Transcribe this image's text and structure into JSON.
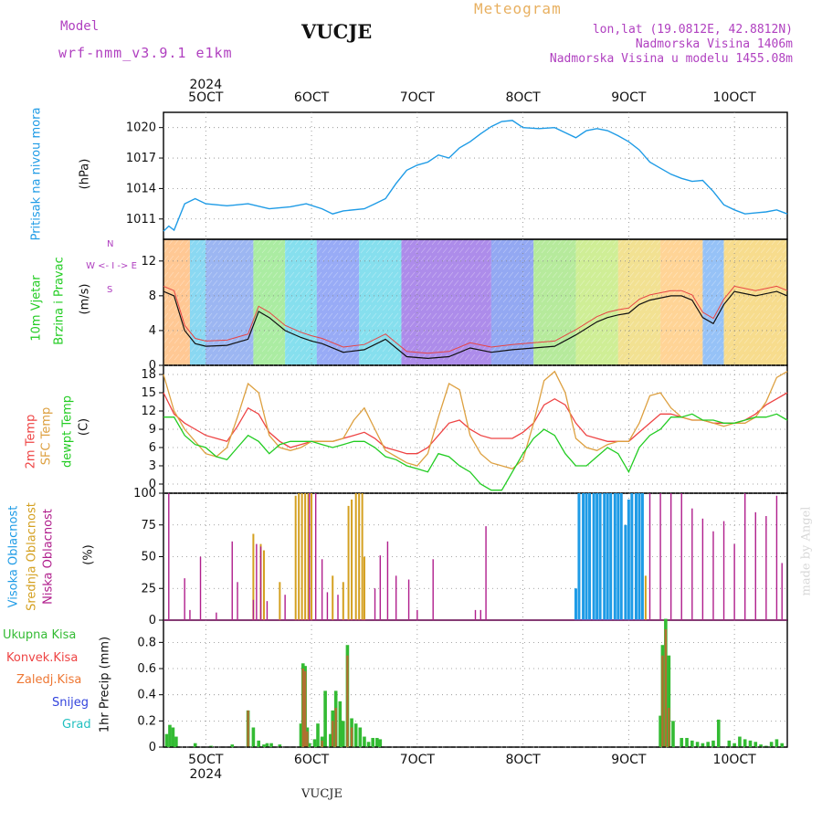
{
  "header": {
    "model_label": "Model",
    "model_name": "wrf-nmm_v3.9.1 e1km",
    "station": "VUCJE",
    "product": "Meteogram",
    "coords": "lon,lat (19.0812E, 42.8812N)",
    "elevation": "Nadmorska Visina 1406m",
    "model_elevation": "Nadmorska Visina u modelu 1455.08m",
    "footer_station": "VUCJE",
    "credit": "made by Angel"
  },
  "colors": {
    "pressure": "#1e9be6",
    "temp2m": "#ee4444",
    "sfc": "#dda040",
    "dewpt": "#22cc22",
    "high_cloud": "#1e9be6",
    "mid_cloud": "#d4a020",
    "low_cloud": "#b01e8c",
    "total_precip": "#33bb33",
    "conv_precip": "#ee4444",
    "frozen_precip": "#ee7733",
    "snow": "#3344dd",
    "hail": "#22c0c0",
    "model": "#b040c0",
    "product": "#e8b060"
  },
  "xaxis": {
    "labels": [
      "5OCT",
      "6OCT",
      "7OCT",
      "8OCT",
      "9OCT",
      "10OCT"
    ],
    "label_days": [
      5,
      6,
      7,
      8,
      9,
      10
    ],
    "year": "2024",
    "range": [
      4.6,
      10.5
    ]
  },
  "chart_data": [
    {
      "type": "line",
      "name": "pressure",
      "ylabel_main": "Pritisak na nivou mora",
      "ylabel_unit": "(hPa)",
      "yticks": [
        "1011",
        "1014",
        "1017",
        "1020"
      ],
      "ylim": [
        1009.0,
        1021.5
      ],
      "x": [
        4.6,
        4.65,
        4.7,
        4.75,
        4.8,
        4.9,
        5.0,
        5.2,
        5.4,
        5.6,
        5.8,
        5.95,
        6.1,
        6.2,
        6.3,
        6.5,
        6.6,
        6.7,
        6.8,
        6.9,
        7.0,
        7.1,
        7.2,
        7.3,
        7.4,
        7.5,
        7.6,
        7.7,
        7.8,
        7.9,
        8.0,
        8.15,
        8.3,
        8.4,
        8.5,
        8.6,
        8.7,
        8.8,
        8.9,
        9.0,
        9.1,
        9.2,
        9.3,
        9.4,
        9.5,
        9.6,
        9.7,
        9.8,
        9.9,
        10.0,
        10.1,
        10.2,
        10.3,
        10.4,
        10.5
      ],
      "y": [
        1009.8,
        1010.3,
        1009.9,
        1011.2,
        1012.5,
        1013.0,
        1012.5,
        1012.3,
        1012.5,
        1012.0,
        1012.2,
        1012.5,
        1012.0,
        1011.5,
        1011.8,
        1012.0,
        1012.5,
        1013.0,
        1014.5,
        1015.8,
        1016.3,
        1016.6,
        1017.3,
        1017.0,
        1018.0,
        1018.6,
        1019.4,
        1020.1,
        1020.6,
        1020.7,
        1020.0,
        1019.9,
        1020.0,
        1019.5,
        1019.0,
        1019.7,
        1019.9,
        1019.7,
        1019.2,
        1018.6,
        1017.8,
        1016.6,
        1016.0,
        1015.4,
        1015.0,
        1014.7,
        1014.8,
        1013.7,
        1012.4,
        1011.9,
        1011.5,
        1011.6,
        1011.7,
        1011.9,
        1011.5
      ]
    },
    {
      "type": "line",
      "name": "wind",
      "ylabel_main": "10m Vjetar",
      "ylabel_sub": "Brzina i Pravac",
      "ylabel_unit": "(m/s)",
      "compass": "W <- I -> E",
      "compass_n": "N",
      "compass_s": "S",
      "yticks": [
        "0",
        "4",
        "8",
        "12"
      ],
      "ylim": [
        0,
        14.5
      ],
      "x": [
        4.6,
        4.7,
        4.8,
        4.9,
        5.0,
        5.2,
        5.4,
        5.5,
        5.6,
        5.75,
        5.9,
        6.0,
        6.1,
        6.3,
        6.5,
        6.7,
        6.9,
        7.1,
        7.3,
        7.5,
        7.7,
        7.9,
        8.1,
        8.3,
        8.5,
        8.7,
        8.8,
        8.9,
        9.0,
        9.1,
        9.2,
        9.4,
        9.5,
        9.6,
        9.7,
        9.8,
        9.9,
        10.0,
        10.2,
        10.4,
        10.5
      ],
      "y": [
        8.5,
        8.0,
        4.0,
        2.5,
        2.2,
        2.3,
        3.0,
        6.2,
        5.5,
        4.0,
        3.2,
        2.8,
        2.5,
        1.5,
        1.8,
        3.0,
        1.0,
        0.8,
        1.0,
        2.0,
        1.5,
        1.8,
        2.0,
        2.2,
        3.5,
        5.0,
        5.5,
        5.8,
        6.0,
        7.0,
        7.5,
        8.0,
        8.0,
        7.5,
        5.5,
        4.8,
        7.0,
        8.5,
        8.0,
        8.5,
        8.0
      ]
    },
    {
      "type": "line",
      "name": "temperature",
      "ylabel_a": "2m Temp",
      "ylabel_b": "SFC Temp",
      "ylabel_c": "dewpt Temp",
      "ylabel_unit": "(C)",
      "yticks": [
        "0",
        "3",
        "6",
        "9",
        "12",
        "15",
        "18"
      ],
      "ylim": [
        -1.5,
        19.5
      ],
      "x": [
        4.6,
        4.7,
        4.8,
        4.9,
        5.0,
        5.1,
        5.2,
        5.3,
        5.4,
        5.5,
        5.6,
        5.7,
        5.8,
        5.9,
        6.0,
        6.1,
        6.2,
        6.3,
        6.4,
        6.5,
        6.6,
        6.7,
        6.8,
        6.9,
        7.0,
        7.1,
        7.2,
        7.3,
        7.4,
        7.5,
        7.6,
        7.7,
        7.8,
        7.9,
        8.0,
        8.1,
        8.2,
        8.3,
        8.4,
        8.5,
        8.6,
        8.7,
        8.8,
        8.9,
        9.0,
        9.1,
        9.2,
        9.3,
        9.4,
        9.5,
        9.6,
        9.7,
        9.8,
        9.9,
        10.0,
        10.1,
        10.2,
        10.3,
        10.4,
        10.5
      ],
      "series": [
        {
          "name": "2m Temp",
          "values": [
            15.0,
            11.5,
            10.0,
            9.0,
            8.0,
            7.5,
            7.0,
            9.5,
            12.5,
            11.5,
            8.5,
            7.0,
            6.0,
            6.5,
            7.0,
            7.0,
            7.0,
            7.5,
            8.0,
            8.5,
            7.5,
            6.0,
            5.5,
            5.0,
            5.0,
            6.0,
            8.0,
            10.0,
            10.5,
            9.0,
            8.0,
            7.5,
            7.5,
            7.5,
            8.5,
            10.0,
            13.0,
            14.0,
            13.0,
            10.0,
            8.0,
            7.5,
            7.0,
            7.0,
            7.0,
            8.5,
            10.0,
            11.5,
            11.5,
            11.0,
            10.5,
            10.5,
            10.0,
            10.0,
            10.0,
            10.5,
            11.5,
            13.0,
            14.0,
            15.0
          ]
        },
        {
          "name": "SFC Temp",
          "values": [
            18.0,
            12.0,
            9.0,
            7.0,
            5.0,
            4.5,
            6.0,
            11.0,
            16.5,
            15.0,
            8.0,
            6.0,
            5.5,
            6.0,
            7.0,
            7.0,
            7.0,
            7.5,
            10.5,
            12.5,
            9.0,
            5.5,
            4.5,
            3.5,
            3.0,
            5.0,
            11.0,
            16.5,
            15.5,
            8.0,
            5.0,
            3.5,
            3.0,
            2.5,
            4.0,
            10.0,
            17.0,
            18.5,
            15.0,
            7.5,
            6.0,
            5.5,
            6.5,
            7.0,
            7.0,
            10.0,
            14.5,
            15.0,
            12.5,
            11.0,
            10.5,
            10.5,
            10.0,
            9.5,
            10.0,
            10.0,
            11.0,
            13.5,
            17.5,
            18.5
          ]
        },
        {
          "name": "dewpt Temp",
          "values": [
            11.0,
            11.0,
            8.0,
            6.5,
            6.0,
            4.5,
            4.0,
            6.0,
            8.0,
            7.0,
            5.0,
            6.5,
            7.0,
            7.0,
            7.0,
            6.5,
            6.0,
            6.5,
            7.0,
            7.0,
            6.0,
            4.5,
            4.0,
            3.0,
            2.5,
            2.0,
            5.0,
            4.5,
            3.0,
            2.0,
            0.0,
            -1.0,
            -1.0,
            2.0,
            5.0,
            7.5,
            9.0,
            8.0,
            5.0,
            3.0,
            3.0,
            4.5,
            6.0,
            5.0,
            2.0,
            6.0,
            8.0,
            9.0,
            11.0,
            11.0,
            11.5,
            10.5,
            10.5,
            10.0,
            10.0,
            10.5,
            11.0,
            11.0,
            11.5,
            10.5
          ]
        }
      ]
    },
    {
      "type": "bar",
      "name": "cloud_cover",
      "ylabel_a": "Visoka Oblacnost",
      "ylabel_b": "Srednja Oblacnost",
      "ylabel_c": "Niska Oblacnost",
      "ylabel_unit": "(%)",
      "yticks": [
        "0",
        "25",
        "50",
        "75",
        "100"
      ],
      "ylim": [
        0,
        100
      ],
      "series": [
        {
          "name": "Visoka Oblacnost",
          "x": [
            8.5,
            8.53,
            8.57,
            8.6,
            8.63,
            8.67,
            8.7,
            8.73,
            8.77,
            8.8,
            8.83,
            8.87,
            8.9,
            8.93,
            8.97,
            9.0,
            9.03,
            9.07,
            9.1,
            9.13
          ],
          "values": [
            25,
            100,
            100,
            100,
            100,
            100,
            100,
            100,
            100,
            100,
            100,
            100,
            100,
            100,
            75,
            95,
            100,
            100,
            100,
            100
          ]
        },
        {
          "name": "Srednja Oblacnost",
          "x": [
            5.45,
            5.52,
            5.55,
            5.7,
            5.85,
            5.88,
            5.91,
            5.94,
            5.97,
            6.0,
            6.2,
            6.3,
            6.35,
            6.38,
            6.42,
            6.45,
            6.48,
            6.5,
            9.16
          ],
          "values": [
            68,
            60,
            55,
            30,
            98,
            100,
            100,
            100,
            100,
            100,
            35,
            30,
            90,
            95,
            100,
            100,
            100,
            50,
            35
          ]
        },
        {
          "name": "Niska Oblacnost",
          "x": [
            4.65,
            4.8,
            4.85,
            4.95,
            5.1,
            5.25,
            5.3,
            5.45,
            5.48,
            5.52,
            5.58,
            5.75,
            5.98,
            6.04,
            6.1,
            6.15,
            6.25,
            6.6,
            6.65,
            6.72,
            6.8,
            6.92,
            7.0,
            7.15,
            7.55,
            7.6,
            7.65,
            9.2,
            9.3,
            9.4,
            9.5,
            9.6,
            9.7,
            9.8,
            9.9,
            10.0,
            10.1,
            10.2,
            10.3,
            10.4,
            10.45
          ],
          "values": [
            100,
            33,
            8,
            50,
            6,
            62,
            30,
            16,
            60,
            58,
            15,
            20,
            100,
            100,
            48,
            22,
            20,
            25,
            51,
            62,
            35,
            32,
            8,
            48,
            8,
            8,
            74,
            100,
            100,
            100,
            100,
            88,
            80,
            70,
            78,
            60,
            100,
            85,
            82,
            98,
            45
          ]
        }
      ]
    },
    {
      "type": "bar",
      "name": "precipitation",
      "ylabel_unit": "1hr Precip (mm)",
      "legend": [
        "Ukupna Kisa",
        "Konvek.Kisa",
        "Zaledj.Kisa",
        "Snijeg",
        "Grad"
      ],
      "yticks": [
        "0",
        "0.2",
        "0.4",
        "0.6",
        "0.8"
      ],
      "ylim": [
        0,
        0.97
      ],
      "series": [
        {
          "name": "Ukupna Kisa",
          "x": [
            4.63,
            4.66,
            4.69,
            4.72,
            4.9,
            5.05,
            5.25,
            5.4,
            5.45,
            5.5,
            5.55,
            5.58,
            5.62,
            5.7,
            5.9,
            5.92,
            5.94,
            5.96,
            5.98,
            6.03,
            6.06,
            6.1,
            6.13,
            6.18,
            6.2,
            6.23,
            6.27,
            6.3,
            6.34,
            6.38,
            6.42,
            6.46,
            6.5,
            6.54,
            6.58,
            6.62,
            6.65,
            9.3,
            9.32,
            9.35,
            9.38,
            9.42,
            9.5,
            9.55,
            9.6,
            9.65,
            9.7,
            9.75,
            9.8,
            9.85,
            9.95,
            10.0,
            10.05,
            10.1,
            10.15,
            10.2,
            10.25,
            10.3,
            10.35,
            10.4,
            10.45
          ],
          "values": [
            0.1,
            0.17,
            0.15,
            0.08,
            0.03,
            0.01,
            0.02,
            0.28,
            0.15,
            0.05,
            0.02,
            0.03,
            0.03,
            0.02,
            0.18,
            0.64,
            0.62,
            0.15,
            0.03,
            0.06,
            0.18,
            0.08,
            0.43,
            0.1,
            0.28,
            0.43,
            0.35,
            0.2,
            0.78,
            0.22,
            0.18,
            0.15,
            0.08,
            0.04,
            0.07,
            0.07,
            0.06,
            0.24,
            0.78,
            0.98,
            0.7,
            0.2,
            0.07,
            0.07,
            0.05,
            0.04,
            0.03,
            0.04,
            0.05,
            0.21,
            0.05,
            0.03,
            0.08,
            0.06,
            0.05,
            0.04,
            0.02,
            0.01,
            0.04,
            0.06,
            0.03
          ]
        },
        {
          "name": "Konvek.Kisa",
          "x": [
            5.4,
            5.92,
            5.94,
            5.96,
            6.1,
            6.2,
            6.23,
            6.34,
            6.38,
            9.32,
            9.35,
            9.38
          ],
          "values": [
            0.28,
            0.6,
            0.58,
            0.12,
            0.05,
            0.2,
            0.3,
            0.7,
            0.15,
            0.7,
            0.9,
            0.3
          ]
        }
      ]
    }
  ]
}
